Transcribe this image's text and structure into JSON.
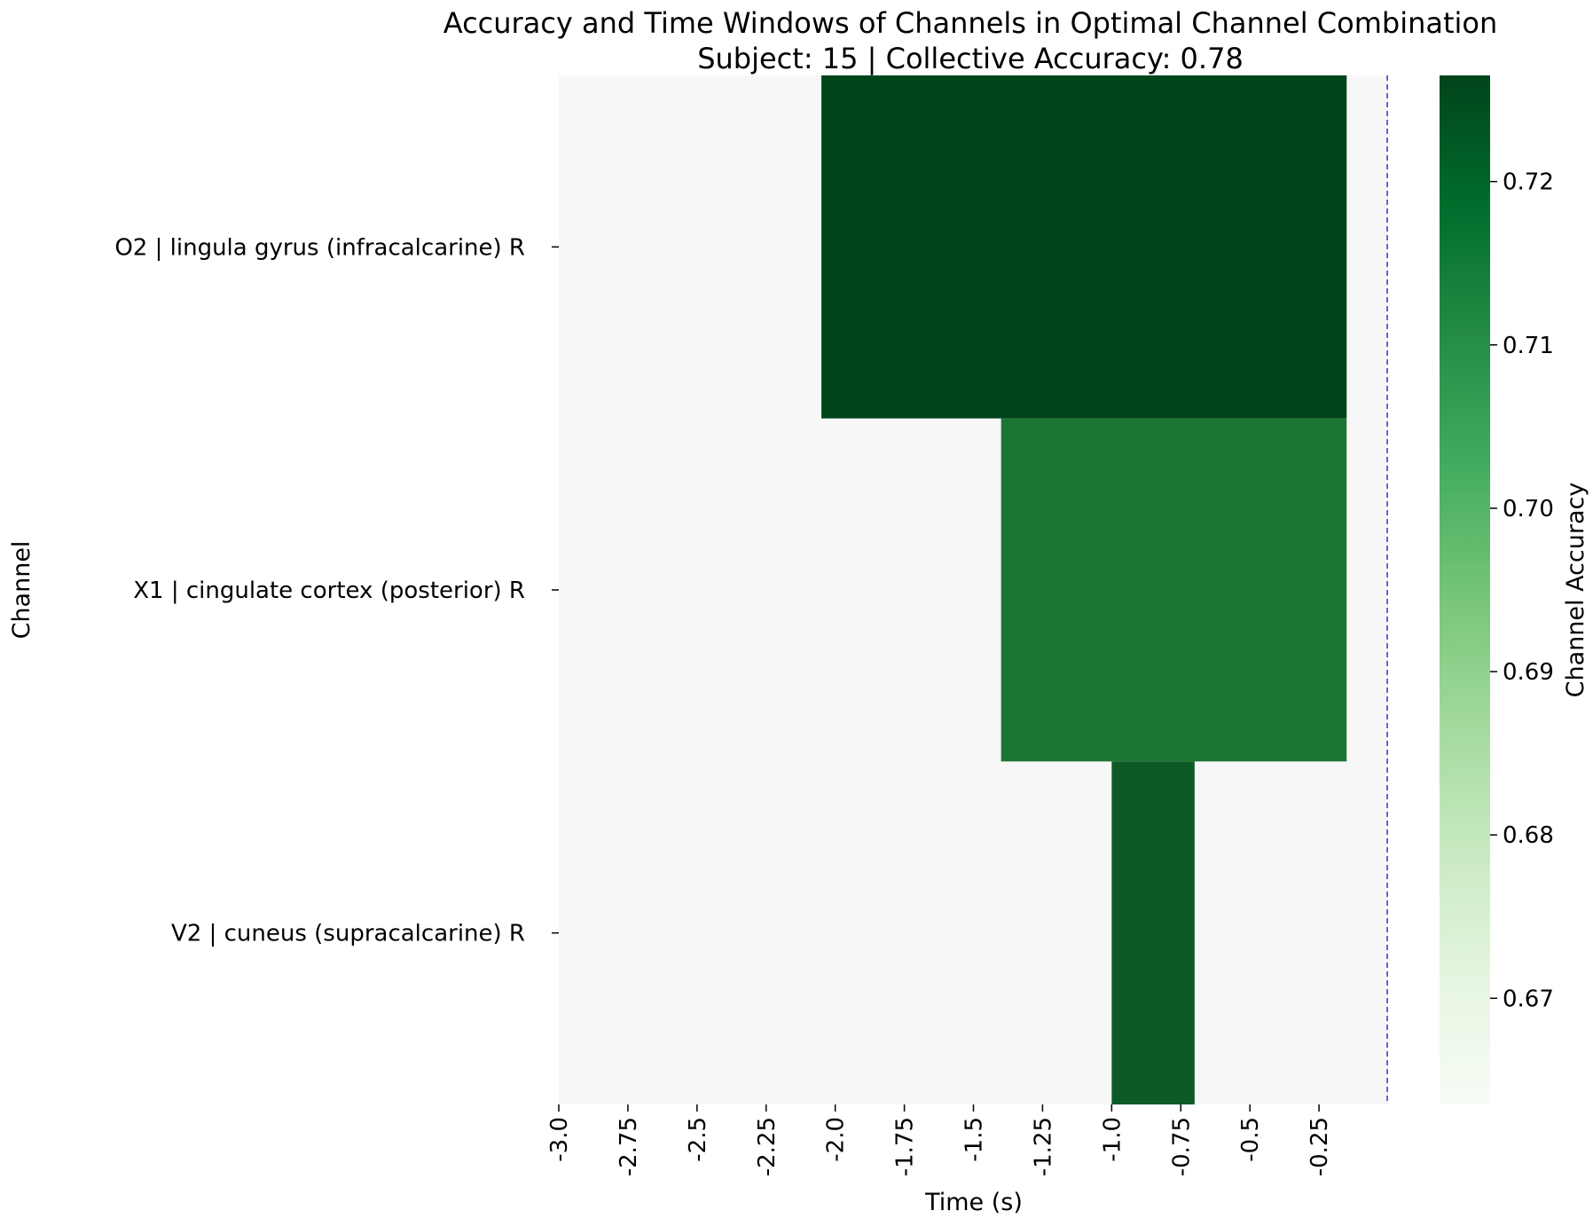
{
  "chart_data": {
    "type": "heatmap",
    "title": "Accuracy and Time Windows of Channels in Optimal Channel Combination",
    "subtitle": "Subject: 15 | Collective Accuracy: 0.78",
    "xlabel": "Time (s)",
    "ylabel": "Channel",
    "colorbar_label": "Channel Accuracy",
    "colormap": "Greens",
    "colorbar_range": [
      0.6635,
      0.7265
    ],
    "colorbar_ticks": [
      "0.67",
      "0.68",
      "0.69",
      "0.70",
      "0.71",
      "0.72"
    ],
    "x_range": [
      -3.0,
      0.0
    ],
    "x_ticks": [
      "-3.0",
      "-2.75",
      "-2.5",
      "-2.25",
      "-2.0",
      "-1.75",
      "-1.5",
      "-1.25",
      "-1.0",
      "-0.75",
      "-0.5",
      "-0.25"
    ],
    "background_color": "#f7f7f7",
    "marker_line": {
      "x": 0.0,
      "color": "#3333cc",
      "style": "dashed"
    },
    "channels": [
      {
        "label": "O2 | lingula gyrus (infracalcarine) R",
        "start": -2.05,
        "end": -0.15,
        "accuracy": 0.7265,
        "color": "#00441b"
      },
      {
        "label": "X1 | cingulate cortex (posterior) R",
        "start": -1.4,
        "end": -0.15,
        "accuracy": 0.716,
        "color": "#1c7633"
      },
      {
        "label": "V2 | cuneus (supracalcarine) R",
        "start": -1.0,
        "end": -0.7,
        "accuracy": 0.722,
        "color": "#0d5a27"
      }
    ]
  }
}
